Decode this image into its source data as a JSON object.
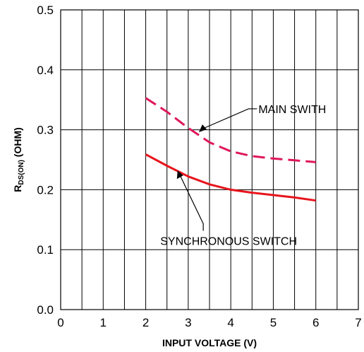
{
  "chart_data": {
    "type": "line",
    "xlabel": "INPUT VOLTAGE (V)",
    "ylabel_main": "R",
    "ylabel_sub": "DS(ON)",
    "ylabel_unit": " (OHM)",
    "xlim": [
      0,
      7
    ],
    "ylim": [
      0.0,
      0.5
    ],
    "x_ticks": [
      "0",
      "1",
      "2",
      "3",
      "4",
      "5",
      "6",
      "7"
    ],
    "y_ticks": [
      "0.0",
      "0.1",
      "0.2",
      "0.3",
      "0.4",
      "0.5"
    ],
    "grid": true,
    "series": [
      {
        "name": "MAIN SWITH",
        "style": "dashed",
        "color": "#e0185a",
        "x": [
          2.0,
          2.5,
          3.0,
          3.5,
          4.0,
          4.5,
          5.0,
          5.5,
          6.0
        ],
        "y": [
          0.353,
          0.33,
          0.303,
          0.279,
          0.264,
          0.256,
          0.252,
          0.249,
          0.246
        ]
      },
      {
        "name": "SYNCHRONOUS SWITCH",
        "style": "solid",
        "color": "#e8141c",
        "x": [
          2.0,
          2.5,
          3.0,
          3.5,
          4.0,
          4.5,
          5.0,
          5.5,
          6.0
        ],
        "y": [
          0.259,
          0.24,
          0.222,
          0.209,
          0.2,
          0.195,
          0.191,
          0.187,
          0.182
        ]
      }
    ],
    "annotations": [
      {
        "text": "MAIN SWITH",
        "target_x": 3.25,
        "target_y": 0.296,
        "label_x": 4.65,
        "label_y": 0.335
      },
      {
        "text": "SYNCHRONOUS SWITCH",
        "target_x": 2.75,
        "target_y": 0.232,
        "label_x": 3.95,
        "label_y": 0.115
      }
    ]
  }
}
